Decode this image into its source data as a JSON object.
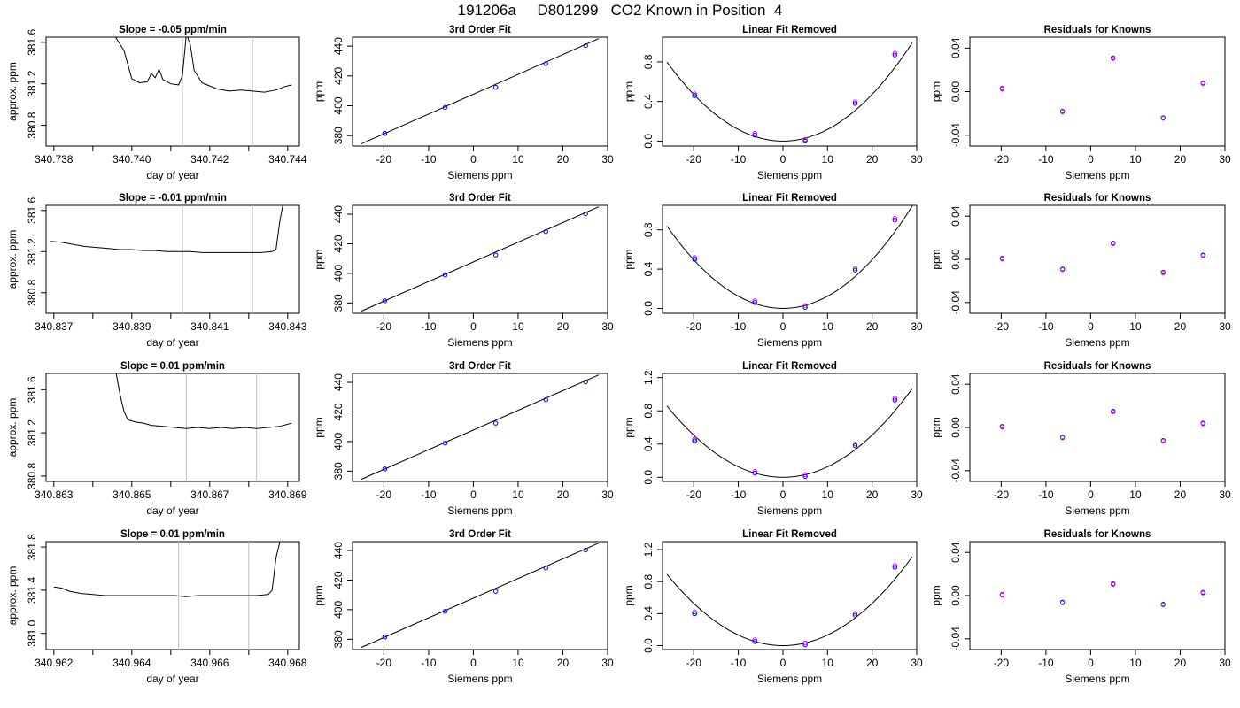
{
  "page": {
    "title": "191206a     D801299   CO2 Known in Position  4"
  },
  "colors": {
    "trace": "#000000",
    "gridline": "#bebebe",
    "point_blue": "#0000ff",
    "point_magenta": "#ff00ff",
    "point_cyan": "#00bfff"
  },
  "chart_data": [
    {
      "type": "line",
      "title": "Slope =  -0.05  ppm/min",
      "xlabel": "day of year",
      "ylabel": "approx. ppm",
      "xlim": [
        340.7378,
        340.7443
      ],
      "ylim": [
        380.6,
        381.65
      ],
      "xticks": [
        340.738,
        340.74,
        340.742,
        340.744
      ],
      "xtick_labels": [
        "340.738",
        "340.740",
        "340.742",
        "340.744"
      ],
      "yticks": [
        380.8,
        381.2,
        381.6
      ],
      "ytick_labels": [
        "380.8",
        "381.2",
        "381.6"
      ],
      "vlines": [
        340.7413,
        340.7431
      ],
      "x_start": 340.7395,
      "x_end": 340.7441,
      "points": [
        [
          340.7395,
          381.7
        ],
        [
          340.7398,
          381.52
        ],
        [
          340.74,
          381.25
        ],
        [
          340.7402,
          381.21
        ],
        [
          340.7404,
          381.22
        ],
        [
          340.7405,
          381.3
        ],
        [
          340.7406,
          381.26
        ],
        [
          340.7407,
          381.34
        ],
        [
          340.7408,
          381.24
        ],
        [
          340.741,
          381.2
        ],
        [
          340.7412,
          381.19
        ],
        [
          340.7413,
          381.28
        ],
        [
          340.7414,
          381.68
        ],
        [
          340.7415,
          381.58
        ],
        [
          340.7416,
          381.33
        ],
        [
          340.7418,
          381.21
        ],
        [
          340.742,
          381.18
        ],
        [
          340.7422,
          381.15
        ],
        [
          340.7425,
          381.13
        ],
        [
          340.7428,
          381.14
        ],
        [
          340.7431,
          381.13
        ],
        [
          340.7434,
          381.12
        ],
        [
          340.7437,
          381.14
        ],
        [
          340.7439,
          381.17
        ],
        [
          340.7441,
          381.19
        ]
      ]
    },
    {
      "type": "scatter",
      "title": "3rd Order Fit",
      "xlabel": "Siemens ppm",
      "ylabel": "ppm",
      "xlim": [
        -27,
        30
      ],
      "ylim": [
        373,
        446
      ],
      "xticks": [
        -20,
        -10,
        0,
        10,
        20,
        30
      ],
      "xtick_labels": [
        "-20",
        "-10",
        "0",
        "10",
        "20",
        "30"
      ],
      "yticks": [
        380,
        400,
        420,
        440
      ],
      "ytick_labels": [
        "380",
        "400",
        "420",
        "440"
      ],
      "x": [
        -19.8,
        -6.3,
        5.0,
        16.2,
        25.1
      ],
      "y": [
        381.5,
        398.9,
        412.4,
        428.2,
        440.3
      ],
      "fit_line": [
        [
          -25,
          374.5
        ],
        [
          28,
          445
        ]
      ]
    },
    {
      "type": "scatter",
      "title": "Linear Fit Removed",
      "xlabel": "Siemens ppm",
      "ylabel": "ppm",
      "xlim": [
        -27,
        30
      ],
      "ylim": [
        -0.05,
        1.05
      ],
      "xticks": [
        -20,
        -10,
        0,
        10,
        20,
        30
      ],
      "xtick_labels": [
        "-20",
        "-10",
        "0",
        "10",
        "20",
        "30"
      ],
      "yticks": [
        0.0,
        0.4,
        0.8
      ],
      "ytick_labels": [
        "0.0",
        "0.4",
        "0.8"
      ],
      "x": [
        -19.8,
        -6.3,
        5.0,
        16.2,
        25.1
      ],
      "y": [
        0.46,
        0.06,
        0.0,
        0.38,
        0.87
      ],
      "curve_a": 0.00118
    },
    {
      "type": "scatter",
      "title": "Residuals for Knowns",
      "xlabel": "Siemens ppm",
      "ylabel": "ppm",
      "xlim": [
        -27,
        30
      ],
      "ylim": [
        -0.05,
        0.05
      ],
      "xticks": [
        -20,
        -10,
        0,
        10,
        20,
        30
      ],
      "xtick_labels": [
        "-20",
        "-10",
        "0",
        "10",
        "20",
        "30"
      ],
      "yticks": [
        -0.04,
        0.0,
        0.04
      ],
      "ytick_labels": [
        "-0.04",
        "0.00",
        "0.04"
      ],
      "x": [
        -19.8,
        -6.3,
        5.0,
        16.2,
        25.1
      ],
      "y": [
        0.003,
        -0.018,
        0.031,
        -0.024,
        0.008
      ]
    },
    {
      "type": "line",
      "title": "Slope =  -0.01  ppm/min",
      "xlabel": "day of year",
      "ylabel": "approx. ppm",
      "xlim": [
        340.8368,
        340.8433
      ],
      "ylim": [
        380.6,
        381.65
      ],
      "xticks": [
        340.837,
        340.839,
        340.841,
        340.843
      ],
      "xtick_labels": [
        "340.837",
        "340.839",
        "340.841",
        "340.843"
      ],
      "yticks": [
        380.8,
        381.2,
        381.6
      ],
      "ytick_labels": [
        "380.8",
        "381.2",
        "381.6"
      ],
      "vlines": [
        340.8403,
        340.8421
      ],
      "x_start": 340.8369,
      "x_end": 340.8429,
      "points": [
        [
          340.8369,
          381.3
        ],
        [
          340.8372,
          381.29
        ],
        [
          340.8375,
          381.27
        ],
        [
          340.8378,
          381.25
        ],
        [
          340.8381,
          381.24
        ],
        [
          340.8384,
          381.23
        ],
        [
          340.8387,
          381.22
        ],
        [
          340.839,
          381.22
        ],
        [
          340.8393,
          381.21
        ],
        [
          340.8396,
          381.21
        ],
        [
          340.8399,
          381.2
        ],
        [
          340.8402,
          381.2
        ],
        [
          340.8405,
          381.2
        ],
        [
          340.8408,
          381.19
        ],
        [
          340.8411,
          381.19
        ],
        [
          340.8414,
          381.19
        ],
        [
          340.8417,
          381.19
        ],
        [
          340.842,
          381.19
        ],
        [
          340.8423,
          381.19
        ],
        [
          340.8426,
          381.2
        ],
        [
          340.8427,
          381.22
        ],
        [
          340.8428,
          381.5
        ],
        [
          340.8429,
          381.7
        ]
      ]
    },
    {
      "type": "scatter",
      "title": "3rd Order Fit",
      "xlabel": "Siemens ppm",
      "ylabel": "ppm",
      "xlim": [
        -27,
        30
      ],
      "ylim": [
        373,
        446
      ],
      "xticks": [
        -20,
        -10,
        0,
        10,
        20,
        30
      ],
      "xtick_labels": [
        "-20",
        "-10",
        "0",
        "10",
        "20",
        "30"
      ],
      "yticks": [
        380,
        400,
        420,
        440
      ],
      "ytick_labels": [
        "380",
        "400",
        "420",
        "440"
      ],
      "x": [
        -19.8,
        -6.3,
        5.0,
        16.2,
        25.1
      ],
      "y": [
        381.5,
        398.9,
        412.4,
        428.2,
        440.3
      ],
      "fit_line": [
        [
          -25,
          374.5
        ],
        [
          28,
          445
        ]
      ]
    },
    {
      "type": "scatter",
      "title": "Linear Fit Removed",
      "xlabel": "Siemens ppm",
      "ylabel": "ppm",
      "xlim": [
        -27,
        30
      ],
      "ylim": [
        -0.05,
        1.05
      ],
      "xticks": [
        -20,
        -10,
        0,
        10,
        20,
        30
      ],
      "xtick_labels": [
        "-20",
        "-10",
        "0",
        "10",
        "20",
        "30"
      ],
      "yticks": [
        0.0,
        0.4,
        0.8
      ],
      "ytick_labels": [
        "0.0",
        "0.4",
        "0.8"
      ],
      "x": [
        -19.8,
        -6.3,
        5.0,
        16.2,
        25.1
      ],
      "y": [
        0.5,
        0.06,
        0.01,
        0.39,
        0.9
      ],
      "curve_a": 0.00124
    },
    {
      "type": "scatter",
      "title": "Residuals for Knowns",
      "xlabel": "Siemens ppm",
      "ylabel": "ppm",
      "xlim": [
        -27,
        30
      ],
      "ylim": [
        -0.05,
        0.05
      ],
      "xticks": [
        -20,
        -10,
        0,
        10,
        20,
        30
      ],
      "xtick_labels": [
        "-20",
        "-10",
        "0",
        "10",
        "20",
        "30"
      ],
      "yticks": [
        -0.04,
        0.0,
        0.04
      ],
      "ytick_labels": [
        "-0.04",
        "0.00",
        "0.04"
      ],
      "x": [
        -19.8,
        -6.3,
        5.0,
        16.2,
        25.1
      ],
      "y": [
        0.001,
        -0.009,
        0.015,
        -0.012,
        0.004
      ]
    },
    {
      "type": "line",
      "title": "Slope =  0.01  ppm/min",
      "xlabel": "day of year",
      "ylabel": "approx. ppm",
      "xlim": [
        340.8628,
        340.8693
      ],
      "ylim": [
        380.75,
        381.75
      ],
      "xticks": [
        340.863,
        340.865,
        340.867,
        340.869
      ],
      "xtick_labels": [
        "340.863",
        "340.865",
        "340.867",
        "340.869"
      ],
      "yticks": [
        380.8,
        381.2,
        381.6
      ],
      "ytick_labels": [
        "380.8",
        "381.2",
        "381.6"
      ],
      "vlines": [
        340.8664,
        340.8682
      ],
      "x_start": 340.8646,
      "x_end": 340.8691,
      "points": [
        [
          340.8646,
          381.75
        ],
        [
          340.8647,
          381.55
        ],
        [
          340.8648,
          381.4
        ],
        [
          340.8649,
          381.32
        ],
        [
          340.8651,
          381.3
        ],
        [
          340.8653,
          381.29
        ],
        [
          340.8655,
          381.27
        ],
        [
          340.8658,
          381.26
        ],
        [
          340.8661,
          381.25
        ],
        [
          340.8664,
          381.24
        ],
        [
          340.8667,
          381.25
        ],
        [
          340.867,
          381.24
        ],
        [
          340.8673,
          381.25
        ],
        [
          340.8676,
          381.24
        ],
        [
          340.8679,
          381.25
        ],
        [
          340.8682,
          381.24
        ],
        [
          340.8685,
          381.25
        ],
        [
          340.8688,
          381.26
        ],
        [
          340.8691,
          381.29
        ]
      ]
    },
    {
      "type": "scatter",
      "title": "3rd Order Fit",
      "xlabel": "Siemens ppm",
      "ylabel": "ppm",
      "xlim": [
        -27,
        30
      ],
      "ylim": [
        373,
        446
      ],
      "xticks": [
        -20,
        -10,
        0,
        10,
        20,
        30
      ],
      "xtick_labels": [
        "-20",
        "-10",
        "0",
        "10",
        "20",
        "30"
      ],
      "yticks": [
        380,
        400,
        420,
        440
      ],
      "ytick_labels": [
        "380",
        "400",
        "420",
        "440"
      ],
      "x": [
        -19.8,
        -6.3,
        5.0,
        16.2,
        25.1
      ],
      "y": [
        381.5,
        398.9,
        412.4,
        428.2,
        440.3
      ],
      "fit_line": [
        [
          -25,
          374.5
        ],
        [
          28,
          445
        ]
      ]
    },
    {
      "type": "scatter",
      "title": "Linear Fit Removed",
      "xlabel": "Siemens ppm",
      "ylabel": "ppm",
      "xlim": [
        -27,
        30
      ],
      "ylim": [
        -0.05,
        1.25
      ],
      "xticks": [
        -20,
        -10,
        0,
        10,
        20,
        30
      ],
      "xtick_labels": [
        "-20",
        "-10",
        "0",
        "10",
        "20",
        "30"
      ],
      "yticks": [
        0.0,
        0.4,
        0.8,
        1.2
      ],
      "ytick_labels": [
        "0.0",
        "0.4",
        "0.8",
        "1.2"
      ],
      "x": [
        -19.8,
        -6.3,
        5.0,
        16.2,
        25.1
      ],
      "y": [
        0.44,
        0.05,
        0.01,
        0.38,
        0.93
      ],
      "curve_a": 0.00127
    },
    {
      "type": "scatter",
      "title": "Residuals for Knowns",
      "xlabel": "Siemens ppm",
      "ylabel": "ppm",
      "xlim": [
        -27,
        30
      ],
      "ylim": [
        -0.05,
        0.05
      ],
      "xticks": [
        -20,
        -10,
        0,
        10,
        20,
        30
      ],
      "xtick_labels": [
        "-20",
        "-10",
        "0",
        "10",
        "20",
        "30"
      ],
      "yticks": [
        -0.04,
        0.0,
        0.04
      ],
      "ytick_labels": [
        "-0.04",
        "0.00",
        "0.04"
      ],
      "x": [
        -19.8,
        -6.3,
        5.0,
        16.2,
        25.1
      ],
      "y": [
        0.001,
        -0.009,
        0.015,
        -0.012,
        0.004
      ]
    },
    {
      "type": "line",
      "title": "Slope =  0.01  ppm/min",
      "xlabel": "day of year",
      "ylabel": "approx. ppm",
      "xlim": [
        340.9618,
        340.9683
      ],
      "ylim": [
        380.85,
        381.85
      ],
      "xticks": [
        340.962,
        340.964,
        340.966,
        340.968
      ],
      "xtick_labels": [
        "340.962",
        "340.964",
        "340.966",
        "340.968"
      ],
      "yticks": [
        381.0,
        381.4,
        381.8
      ],
      "ytick_labels": [
        "381.0",
        "381.4",
        "381.8"
      ],
      "vlines": [
        340.9652,
        340.967
      ],
      "x_start": 340.962,
      "x_end": 340.9678,
      "points": [
        [
          340.962,
          381.43
        ],
        [
          340.9622,
          381.42
        ],
        [
          340.9624,
          381.39
        ],
        [
          340.9627,
          381.37
        ],
        [
          340.963,
          381.36
        ],
        [
          340.9633,
          381.35
        ],
        [
          340.9636,
          381.35
        ],
        [
          340.9639,
          381.35
        ],
        [
          340.9642,
          381.35
        ],
        [
          340.9645,
          381.35
        ],
        [
          340.9648,
          381.35
        ],
        [
          340.9651,
          381.35
        ],
        [
          340.9654,
          381.34
        ],
        [
          340.9657,
          381.35
        ],
        [
          340.966,
          381.35
        ],
        [
          340.9663,
          381.35
        ],
        [
          340.9666,
          381.35
        ],
        [
          340.9669,
          381.35
        ],
        [
          340.9672,
          381.35
        ],
        [
          340.9675,
          381.36
        ],
        [
          340.9676,
          381.4
        ],
        [
          340.9677,
          381.7
        ],
        [
          340.9678,
          381.85
        ]
      ]
    },
    {
      "type": "scatter",
      "title": "3rd Order Fit",
      "xlabel": "Siemens ppm",
      "ylabel": "ppm",
      "xlim": [
        -27,
        30
      ],
      "ylim": [
        373,
        446
      ],
      "xticks": [
        -20,
        -10,
        0,
        10,
        20,
        30
      ],
      "xtick_labels": [
        "-20",
        "-10",
        "0",
        "10",
        "20",
        "30"
      ],
      "yticks": [
        380,
        400,
        420,
        440
      ],
      "ytick_labels": [
        "380",
        "400",
        "420",
        "440"
      ],
      "x": [
        -19.8,
        -6.3,
        5.0,
        16.2,
        25.1
      ],
      "y": [
        381.5,
        398.9,
        412.4,
        428.2,
        440.3
      ],
      "fit_line": [
        [
          -25,
          374.5
        ],
        [
          28,
          445
        ]
      ]
    },
    {
      "type": "scatter",
      "title": "Linear Fit Removed",
      "xlabel": "Siemens ppm",
      "ylabel": "ppm",
      "xlim": [
        -27,
        30
      ],
      "ylim": [
        -0.05,
        1.3
      ],
      "xticks": [
        -20,
        -10,
        0,
        10,
        20,
        30
      ],
      "xtick_labels": [
        "-20",
        "-10",
        "0",
        "10",
        "20",
        "30"
      ],
      "yticks": [
        0.0,
        0.4,
        0.8,
        1.2
      ],
      "ytick_labels": [
        "0.0",
        "0.4",
        "0.8",
        "1.2"
      ],
      "x": [
        -19.8,
        -6.3,
        5.0,
        16.2,
        25.1
      ],
      "y": [
        0.4,
        0.05,
        0.01,
        0.38,
        0.98
      ],
      "curve_a": 0.00132
    },
    {
      "type": "scatter",
      "title": "Residuals for Knowns",
      "xlabel": "Siemens ppm",
      "ylabel": "ppm",
      "xlim": [
        -27,
        30
      ],
      "ylim": [
        -0.05,
        0.05
      ],
      "xticks": [
        -20,
        -10,
        0,
        10,
        20,
        30
      ],
      "xtick_labels": [
        "-20",
        "-10",
        "0",
        "10",
        "20",
        "30"
      ],
      "yticks": [
        -0.04,
        0.0,
        0.04
      ],
      "ytick_labels": [
        "-0.04",
        "0.00",
        "0.04"
      ],
      "x": [
        -19.8,
        -6.3,
        5.0,
        16.2,
        25.1
      ],
      "y": [
        0.001,
        -0.006,
        0.011,
        -0.008,
        0.003
      ]
    }
  ]
}
